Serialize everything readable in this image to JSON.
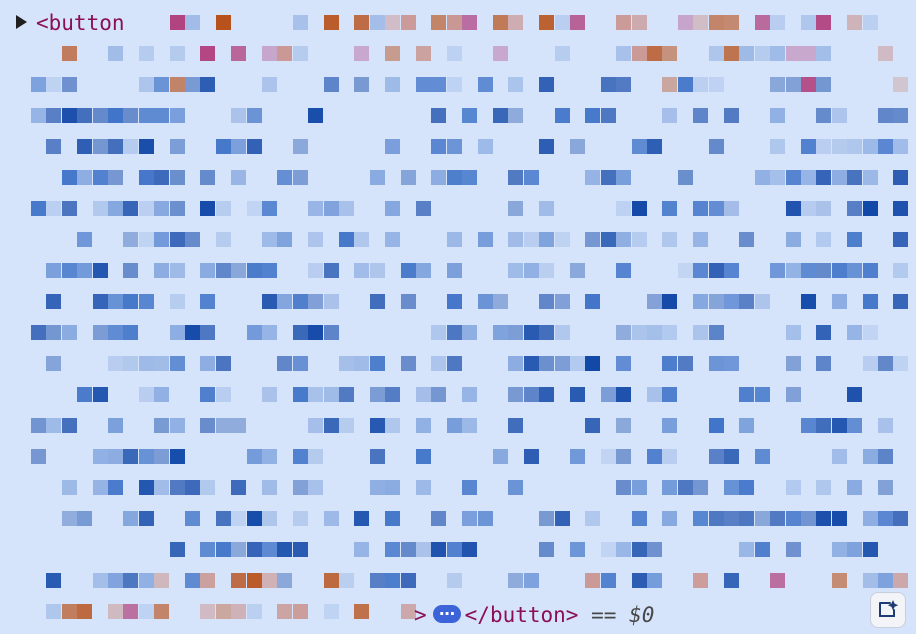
{
  "element": {
    "open_tag": "<button",
    "close_tag": "</button>",
    "gt": ">",
    "ellipsis": "⋯",
    "selected_equals": "==",
    "selected_var": "$0"
  },
  "icons": {
    "expand": "triangle-right-icon",
    "ellipsis": "ellipsis-icon",
    "ai_assist": "ai-sparkle-icon"
  },
  "colors": {
    "background": "#d6e4fb",
    "tag": "#8a1051",
    "pixel_dark": "#1248a8",
    "pixel_mid": "#3f73c8",
    "pixel_light": "#9db9e6",
    "pixel_orange": "#b8521c",
    "pixel_rose": "#c98f88",
    "pixel_magenta": "#b0417e"
  }
}
